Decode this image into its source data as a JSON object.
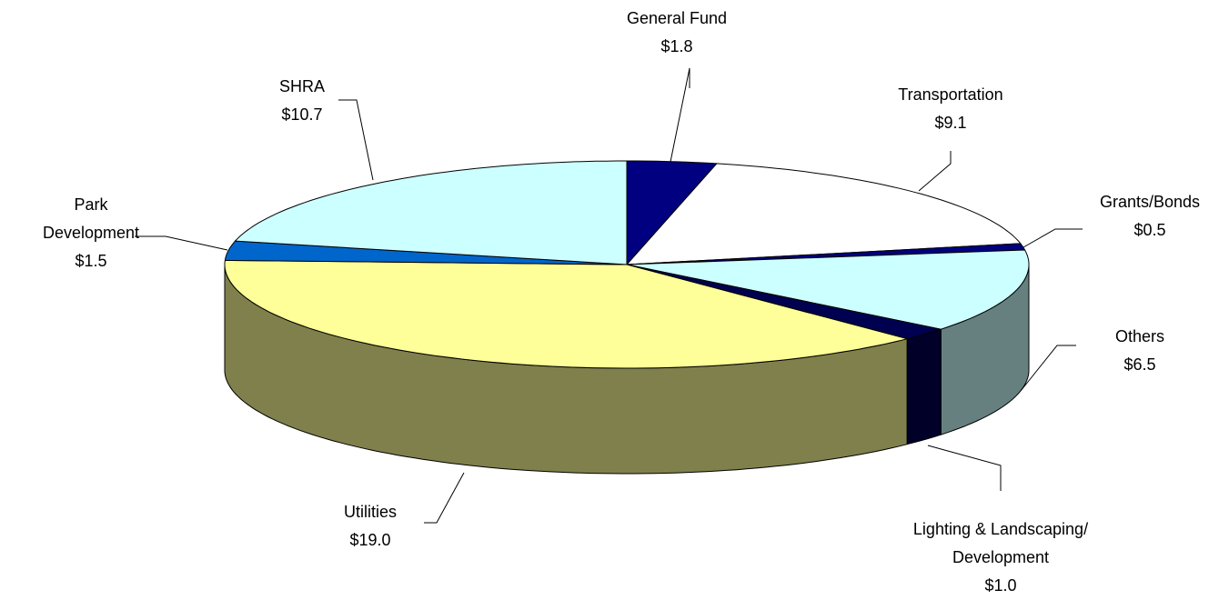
{
  "chart_data": {
    "type": "pie3d",
    "categories": [
      "General Fund",
      "Transportation",
      "Grants/Bonds",
      "Others",
      "Lighting & Landscaping/ Development",
      "Utilities",
      "Park Development",
      "SHRA"
    ],
    "values": [
      1.8,
      9.1,
      0.5,
      6.5,
      1.0,
      19.0,
      1.5,
      10.7
    ],
    "value_labels": [
      "$1.8",
      "$9.1",
      "$0.5",
      "$6.5",
      "$1.0",
      "$19.0",
      "$1.5",
      "$10.7"
    ],
    "colors": [
      "#000080",
      "#ffffff",
      "#000080",
      "#ccffff",
      "#000050",
      "#ffff99",
      "#0066cc",
      "#ccffff"
    ]
  }
}
